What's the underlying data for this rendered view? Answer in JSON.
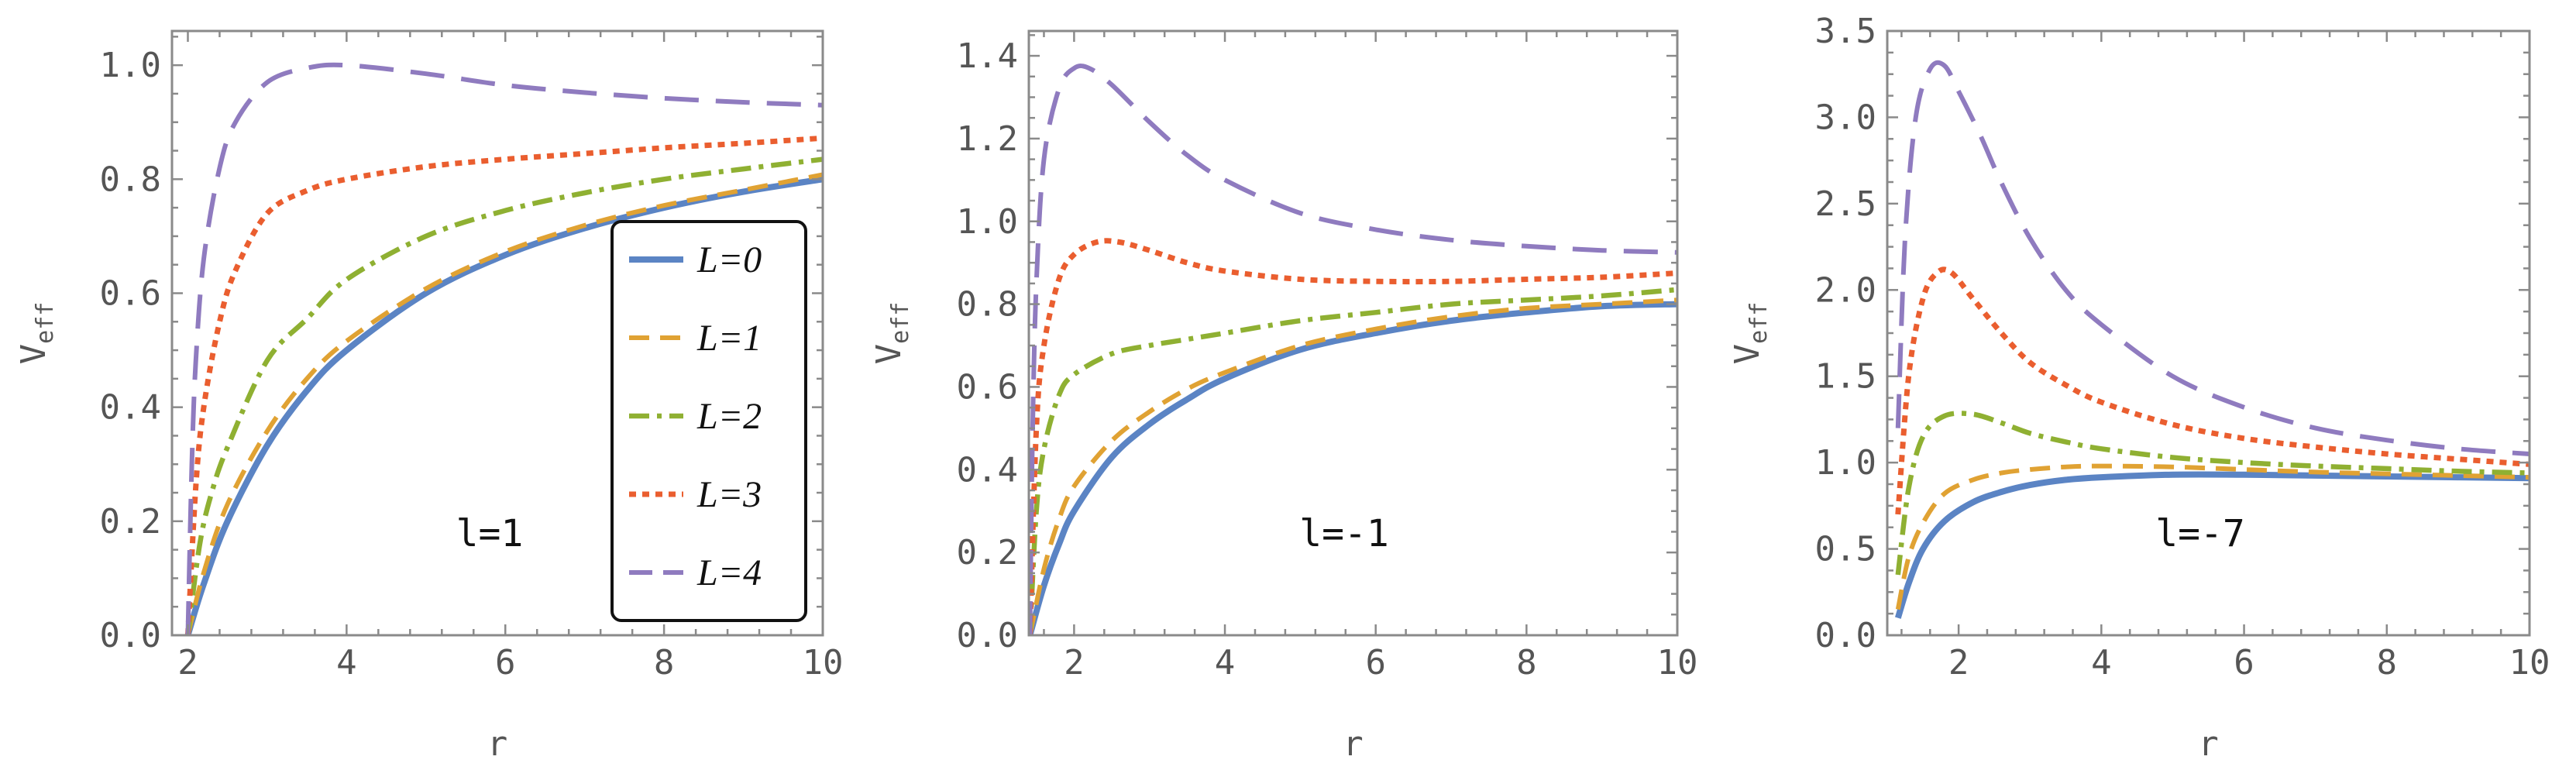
{
  "chart_data": [
    {
      "type": "line",
      "xlabel": "r",
      "ylabel_main": "V",
      "ylabel_sub": "eff",
      "annotation": "l=1",
      "xlim": [
        1.8,
        10
      ],
      "ylim": [
        0,
        1.06
      ],
      "xticks": [
        2,
        4,
        6,
        8,
        10
      ],
      "yticks": [
        0.0,
        0.2,
        0.4,
        0.6,
        0.8,
        1.0
      ],
      "ytick_labels": [
        "0.0",
        "0.2",
        "0.4",
        "0.6",
        "0.8",
        "1.0"
      ],
      "legend": true,
      "series": [
        {
          "name": "L=0",
          "x": [
            2,
            2.2,
            2.5,
            3,
            3.5,
            4,
            5,
            6,
            7,
            8,
            9,
            10
          ],
          "y": [
            0.0,
            0.09,
            0.2,
            0.333,
            0.429,
            0.5,
            0.6,
            0.667,
            0.714,
            0.75,
            0.778,
            0.8
          ]
        },
        {
          "name": "L=1",
          "x": [
            2,
            2.2,
            2.5,
            3,
            3.5,
            4,
            5,
            6,
            7,
            8,
            9,
            10
          ],
          "y": [
            0.0,
            0.11,
            0.23,
            0.358,
            0.45,
            0.516,
            0.608,
            0.673,
            0.719,
            0.754,
            0.781,
            0.808
          ]
        },
        {
          "name": "L=2",
          "x": [
            2,
            2.15,
            2.3,
            2.5,
            3,
            3.5,
            4,
            5,
            6,
            7,
            8,
            9,
            10
          ],
          "y": [
            0.0,
            0.16,
            0.25,
            0.33,
            0.482,
            0.555,
            0.624,
            0.7,
            0.745,
            0.776,
            0.8,
            0.818,
            0.835
          ]
        },
        {
          "name": "L=3",
          "x": [
            2,
            2.1,
            2.2,
            2.4,
            2.6,
            3,
            3.5,
            4,
            5,
            6,
            7,
            8,
            9,
            10
          ],
          "y": [
            0.0,
            0.26,
            0.4,
            0.55,
            0.64,
            0.74,
            0.78,
            0.8,
            0.822,
            0.835,
            0.845,
            0.855,
            0.863,
            0.872
          ]
        },
        {
          "name": "L=4",
          "x": [
            2,
            2.05,
            2.1,
            2.2,
            2.4,
            2.6,
            3,
            3.5,
            4,
            5,
            6,
            7,
            8,
            9,
            10
          ],
          "y": [
            0.0,
            0.3,
            0.48,
            0.66,
            0.82,
            0.9,
            0.97,
            0.995,
            1.0,
            0.985,
            0.965,
            0.952,
            0.942,
            0.935,
            0.93
          ]
        }
      ]
    },
    {
      "type": "line",
      "xlabel": "r",
      "ylabel_main": "V",
      "ylabel_sub": "eff",
      "annotation": "l=-1",
      "xlim": [
        1.4,
        10
      ],
      "ylim": [
        0,
        1.46
      ],
      "xticks": [
        2,
        4,
        6,
        8,
        10
      ],
      "yticks": [
        0.0,
        0.2,
        0.4,
        0.6,
        0.8,
        1.0,
        1.2,
        1.4
      ],
      "ytick_labels": [
        "0.0",
        "0.2",
        "0.4",
        "0.6",
        "0.8",
        "1.0",
        "1.2",
        "1.4"
      ],
      "legend": false,
      "series": [
        {
          "name": "L=0",
          "x": [
            1.414,
            1.6,
            1.8,
            2,
            2.5,
            3,
            3.5,
            4,
            5,
            6,
            7,
            8,
            9,
            10
          ],
          "y": [
            0.0,
            0.12,
            0.22,
            0.3,
            0.43,
            0.51,
            0.57,
            0.62,
            0.69,
            0.73,
            0.76,
            0.78,
            0.795,
            0.8
          ]
        },
        {
          "name": "L=1",
          "x": [
            1.414,
            1.6,
            1.8,
            2,
            2.5,
            3,
            3.5,
            4,
            5,
            6,
            7,
            8,
            9,
            10
          ],
          "y": [
            0.0,
            0.16,
            0.28,
            0.36,
            0.47,
            0.54,
            0.595,
            0.635,
            0.7,
            0.74,
            0.77,
            0.79,
            0.8,
            0.81
          ]
        },
        {
          "name": "L=2",
          "x": [
            1.414,
            1.5,
            1.6,
            1.8,
            2,
            2.5,
            3,
            3.5,
            4,
            5,
            6,
            7,
            8,
            9,
            10
          ],
          "y": [
            0.0,
            0.3,
            0.45,
            0.58,
            0.63,
            0.68,
            0.7,
            0.715,
            0.73,
            0.76,
            0.78,
            0.8,
            0.81,
            0.82,
            0.835
          ]
        },
        {
          "name": "L=3",
          "x": [
            1.414,
            1.5,
            1.6,
            1.8,
            2,
            2.3,
            2.6,
            3,
            3.5,
            4,
            5,
            6,
            7,
            8,
            9,
            10
          ],
          "y": [
            0.0,
            0.5,
            0.7,
            0.86,
            0.92,
            0.95,
            0.95,
            0.93,
            0.9,
            0.88,
            0.86,
            0.855,
            0.855,
            0.86,
            0.865,
            0.875
          ]
        },
        {
          "name": "L=4",
          "x": [
            1.414,
            1.45,
            1.5,
            1.6,
            1.8,
            2,
            2.2,
            2.5,
            3,
            3.5,
            4,
            5,
            6,
            7,
            8,
            9,
            10
          ],
          "y": [
            0.0,
            0.5,
            0.85,
            1.15,
            1.32,
            1.37,
            1.37,
            1.33,
            1.24,
            1.16,
            1.1,
            1.02,
            0.98,
            0.955,
            0.94,
            0.93,
            0.925
          ]
        }
      ]
    },
    {
      "type": "line",
      "xlabel": "r",
      "ylabel_main": "V",
      "ylabel_sub": "eff",
      "annotation": "l=-7",
      "xlim": [
        1.0,
        10
      ],
      "ylim": [
        0,
        3.5
      ],
      "xticks": [
        2,
        4,
        6,
        8,
        10
      ],
      "yticks": [
        0.0,
        0.5,
        1.0,
        1.5,
        2.0,
        2.5,
        3.0,
        3.5
      ],
      "ytick_labels": [
        "0.0",
        "0.5",
        "1.0",
        "1.5",
        "2.0",
        "2.5",
        "3.0",
        "3.5"
      ],
      "legend": false,
      "series": [
        {
          "name": "L=0",
          "x": [
            1.15,
            1.3,
            1.5,
            1.8,
            2.2,
            2.6,
            3,
            3.5,
            4,
            5,
            6,
            7,
            8,
            9,
            10
          ],
          "y": [
            0.1,
            0.3,
            0.5,
            0.66,
            0.77,
            0.83,
            0.87,
            0.9,
            0.915,
            0.93,
            0.93,
            0.925,
            0.92,
            0.915,
            0.91
          ]
        },
        {
          "name": "L=1",
          "x": [
            1.15,
            1.3,
            1.5,
            1.8,
            2.2,
            2.6,
            3,
            3.5,
            4,
            5,
            6,
            7,
            8,
            9,
            10
          ],
          "y": [
            0.15,
            0.45,
            0.65,
            0.82,
            0.9,
            0.94,
            0.96,
            0.975,
            0.98,
            0.975,
            0.96,
            0.945,
            0.935,
            0.925,
            0.915
          ]
        },
        {
          "name": "L=2",
          "x": [
            1.15,
            1.3,
            1.5,
            1.8,
            2.2,
            2.6,
            3,
            3.5,
            4,
            5,
            6,
            7,
            8,
            9,
            10
          ],
          "y": [
            0.35,
            0.85,
            1.15,
            1.27,
            1.28,
            1.23,
            1.17,
            1.12,
            1.08,
            1.03,
            1.0,
            0.98,
            0.965,
            0.95,
            0.94
          ]
        },
        {
          "name": "L=3",
          "x": [
            1.15,
            1.3,
            1.5,
            1.7,
            1.9,
            2.2,
            2.6,
            3,
            3.5,
            4,
            5,
            6,
            7,
            8,
            9,
            10
          ],
          "y": [
            0.7,
            1.5,
            1.95,
            2.1,
            2.1,
            1.95,
            1.75,
            1.58,
            1.45,
            1.35,
            1.22,
            1.14,
            1.09,
            1.05,
            1.02,
            0.99
          ]
        },
        {
          "name": "L=4",
          "x": [
            1.15,
            1.25,
            1.4,
            1.6,
            1.8,
            2,
            2.3,
            2.6,
            3,
            3.5,
            4,
            5,
            6,
            7,
            8,
            9,
            10
          ],
          "y": [
            1.2,
            2.3,
            3.0,
            3.28,
            3.3,
            3.15,
            2.9,
            2.62,
            2.3,
            2.0,
            1.8,
            1.5,
            1.32,
            1.2,
            1.13,
            1.08,
            1.05
          ]
        }
      ]
    }
  ],
  "legend": {
    "entries": [
      "L=0",
      "L=1",
      "L=2",
      "L=3",
      "L=4"
    ]
  },
  "colors": {
    "L0": "#5b84c4",
    "L1": "#e0a233",
    "L2": "#8fb032",
    "L3": "#ea5e2f",
    "L4": "#8f7bbf",
    "frame": "#8a8a8a",
    "ticklabel": "#555555"
  }
}
